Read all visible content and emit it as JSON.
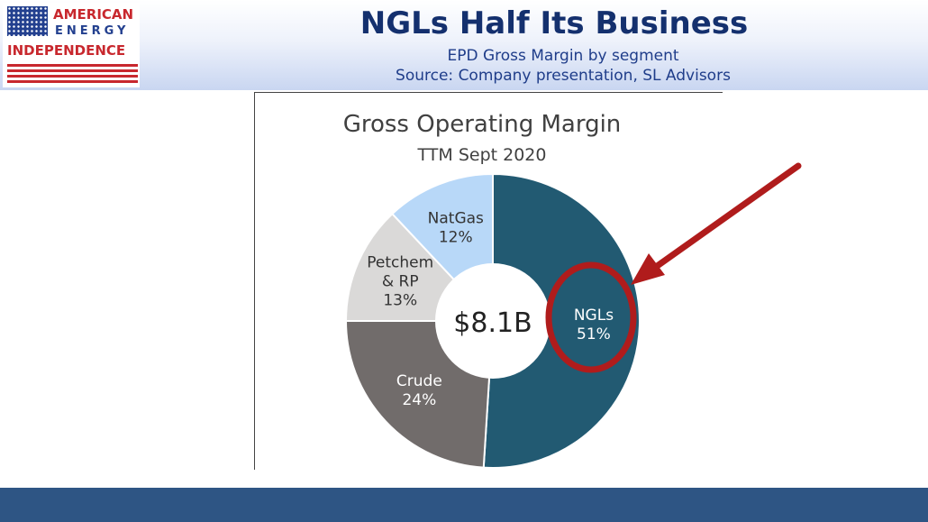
{
  "header": {
    "title": "NGLs Half Its  Business",
    "subtitle": "EPD Gross Margin by segment",
    "source": "Source: Company presentation, SL Advisors"
  },
  "logo": {
    "line1": "AMERICAN",
    "line2": "ENERGY",
    "line3": "INDEPENDENCE"
  },
  "chart_data": {
    "type": "pie",
    "variant": "donut",
    "title": "Gross Operating Margin",
    "subtitle": "TTM Sept 2020",
    "center_label": "$8.1B",
    "slices": [
      {
        "name": "NGLs",
        "value": 51,
        "label_lines": [
          "NGLs",
          "51%"
        ],
        "color": "#225a72",
        "text_color": "#ffffff"
      },
      {
        "name": "Crude",
        "value": 24,
        "label_lines": [
          "Crude",
          "24%"
        ],
        "color": "#716c6b",
        "text_color": "#ffffff"
      },
      {
        "name": "Petchem & RP",
        "value": 13,
        "label_lines": [
          "Petchem",
          "& RP",
          "13%"
        ],
        "color": "#dad9d8",
        "text_color": "#333333"
      },
      {
        "name": "NatGas",
        "value": 12,
        "label_lines": [
          "NatGas",
          "12%"
        ],
        "color": "#b8d8f8",
        "text_color": "#333333"
      }
    ],
    "start": "12 o'clock",
    "direction": "clockwise",
    "highlight": {
      "slice": "NGLs",
      "shape": "ellipse",
      "color": "#b01c1c",
      "arrow": true
    }
  },
  "colors": {
    "title": "#14306e",
    "subtitle": "#1f3d8a",
    "footer": "#2e5584",
    "logo_red": "#c8282e",
    "logo_blue": "#23408f"
  }
}
